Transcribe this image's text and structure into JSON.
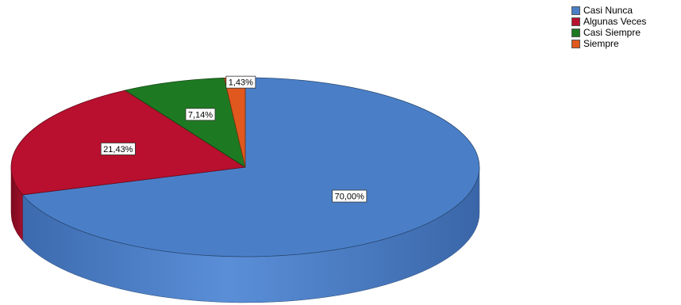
{
  "chart_data": {
    "type": "pie",
    "categories": [
      "Casi Nunca",
      "Algunas Veces",
      "Casi Siempre",
      "Siempre"
    ],
    "values": [
      70.0,
      21.43,
      7.14,
      1.43
    ],
    "data_labels": [
      "70,00%",
      "21,43%",
      "7,14%",
      "1,43%"
    ],
    "colors": [
      "#4a7fc8",
      "#b8102e",
      "#1e7a22",
      "#e0581e"
    ],
    "legend_position": "top-right",
    "style": "3d"
  }
}
